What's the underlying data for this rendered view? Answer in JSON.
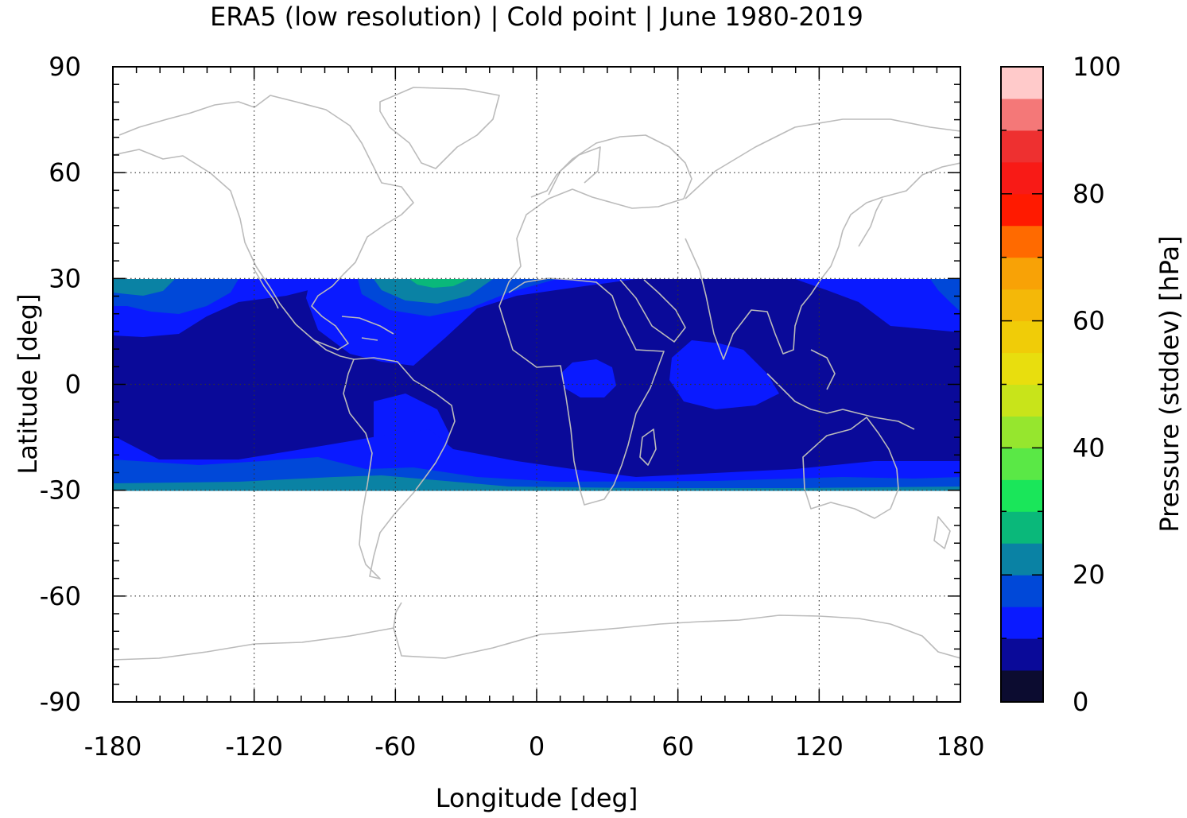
{
  "chart_data": {
    "type": "heatmap",
    "title": "ERA5 (low resolution) | Cold point | June 1980-2019",
    "xlabel": "Longitude [deg]",
    "ylabel": "Latitude [deg]",
    "xlim": [
      -180,
      180
    ],
    "ylim": [
      -90,
      90
    ],
    "x_ticks": [
      "-180",
      "-120",
      "-60",
      "0",
      "60",
      "120",
      "180"
    ],
    "y_ticks": [
      "90",
      "60",
      "30",
      "0",
      "-30",
      "-60",
      "-90"
    ],
    "grid": true,
    "data_lat_range": [
      -30,
      30
    ],
    "colorbar": {
      "label": "Pressure (stddev) [hPa]",
      "range": [
        0,
        100
      ],
      "tick_labels": [
        "0",
        "20",
        "40",
        "60",
        "80",
        "100"
      ],
      "levels": [
        0,
        5,
        10,
        15,
        20,
        25,
        30,
        35,
        40,
        45,
        50,
        55,
        60,
        65,
        70,
        75,
        80,
        85,
        90,
        95,
        100
      ],
      "colors": [
        "#0c0c30",
        "#0a0a99",
        "#0a1aff",
        "#0048d8",
        "#0a82a4",
        "#0ab87a",
        "#1ae65a",
        "#5ae846",
        "#96e62e",
        "#c8e41a",
        "#e8de0e",
        "#f0cc08",
        "#f4b808",
        "#f8a206",
        "#ff6a00",
        "#ff1a00",
        "#f81a16",
        "#ee3030",
        "#f47878",
        "#ffcaca"
      ]
    },
    "field_description_values": {
      "background_band_hPa": [
        5,
        10
      ],
      "enhanced_regions": [
        {
          "region": "Central Pacific near 20-30N",
          "value_range": [
            10,
            25
          ]
        },
        {
          "region": "North Atlantic near 25-30N, 45W",
          "value_range": [
            20,
            30
          ]
        },
        {
          "region": "South subtropics near 25-30S",
          "value_range": [
            10,
            25
          ]
        },
        {
          "region": "Arabian Sea / Indian Ocean 0-10N",
          "value_range": [
            10,
            15
          ]
        },
        {
          "region": "Central Africa near equator",
          "value_range": [
            10,
            15
          ]
        },
        {
          "region": "South America 5-30S",
          "value_range": [
            10,
            15
          ]
        }
      ]
    }
  }
}
